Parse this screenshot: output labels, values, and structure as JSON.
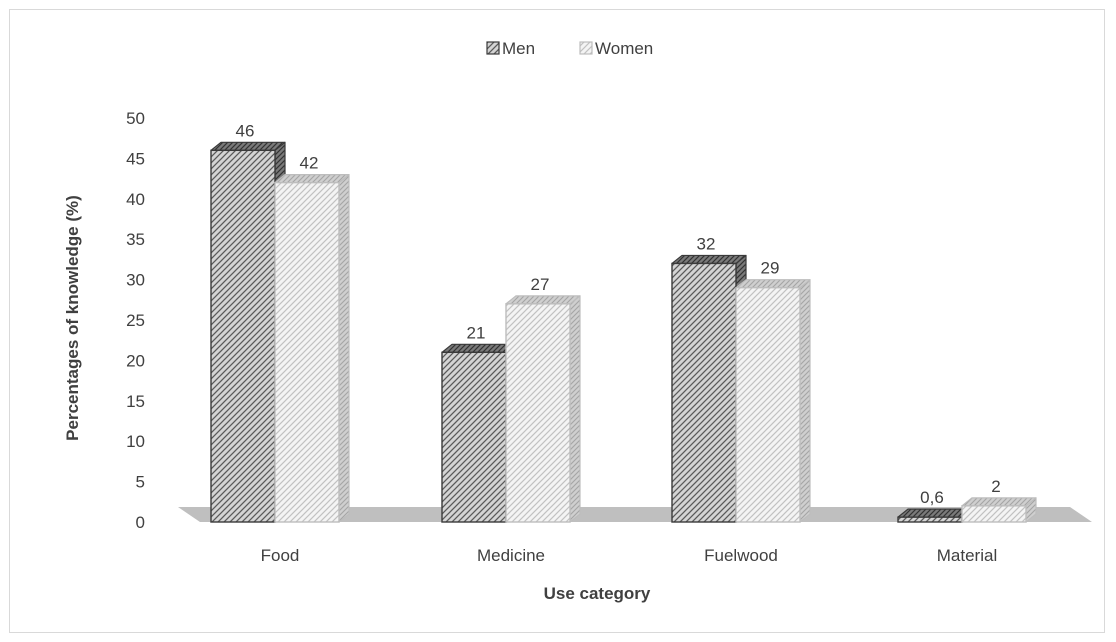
{
  "chart_data": {
    "type": "bar",
    "title": "",
    "xlabel": "Use category",
    "ylabel": "Percentages of knowledge (%)",
    "categories": [
      "Food",
      "Medicine",
      "Fuelwood",
      "Material"
    ],
    "series": [
      {
        "name": "Men",
        "values": [
          46,
          21,
          32,
          0.6
        ],
        "labels": [
          "46",
          "21",
          "32",
          "0,6"
        ],
        "color": "#595959"
      },
      {
        "name": "Women",
        "values": [
          42,
          27,
          29,
          2
        ],
        "labels": [
          "42",
          "27",
          "29",
          "2"
        ],
        "color": "#d9d9d9"
      }
    ],
    "ylim": [
      0,
      50
    ],
    "yticks": [
      0,
      5,
      10,
      15,
      20,
      25,
      30,
      35,
      40,
      45,
      50
    ],
    "grid": false,
    "legend": "top-center",
    "style": "3d-hatched"
  }
}
